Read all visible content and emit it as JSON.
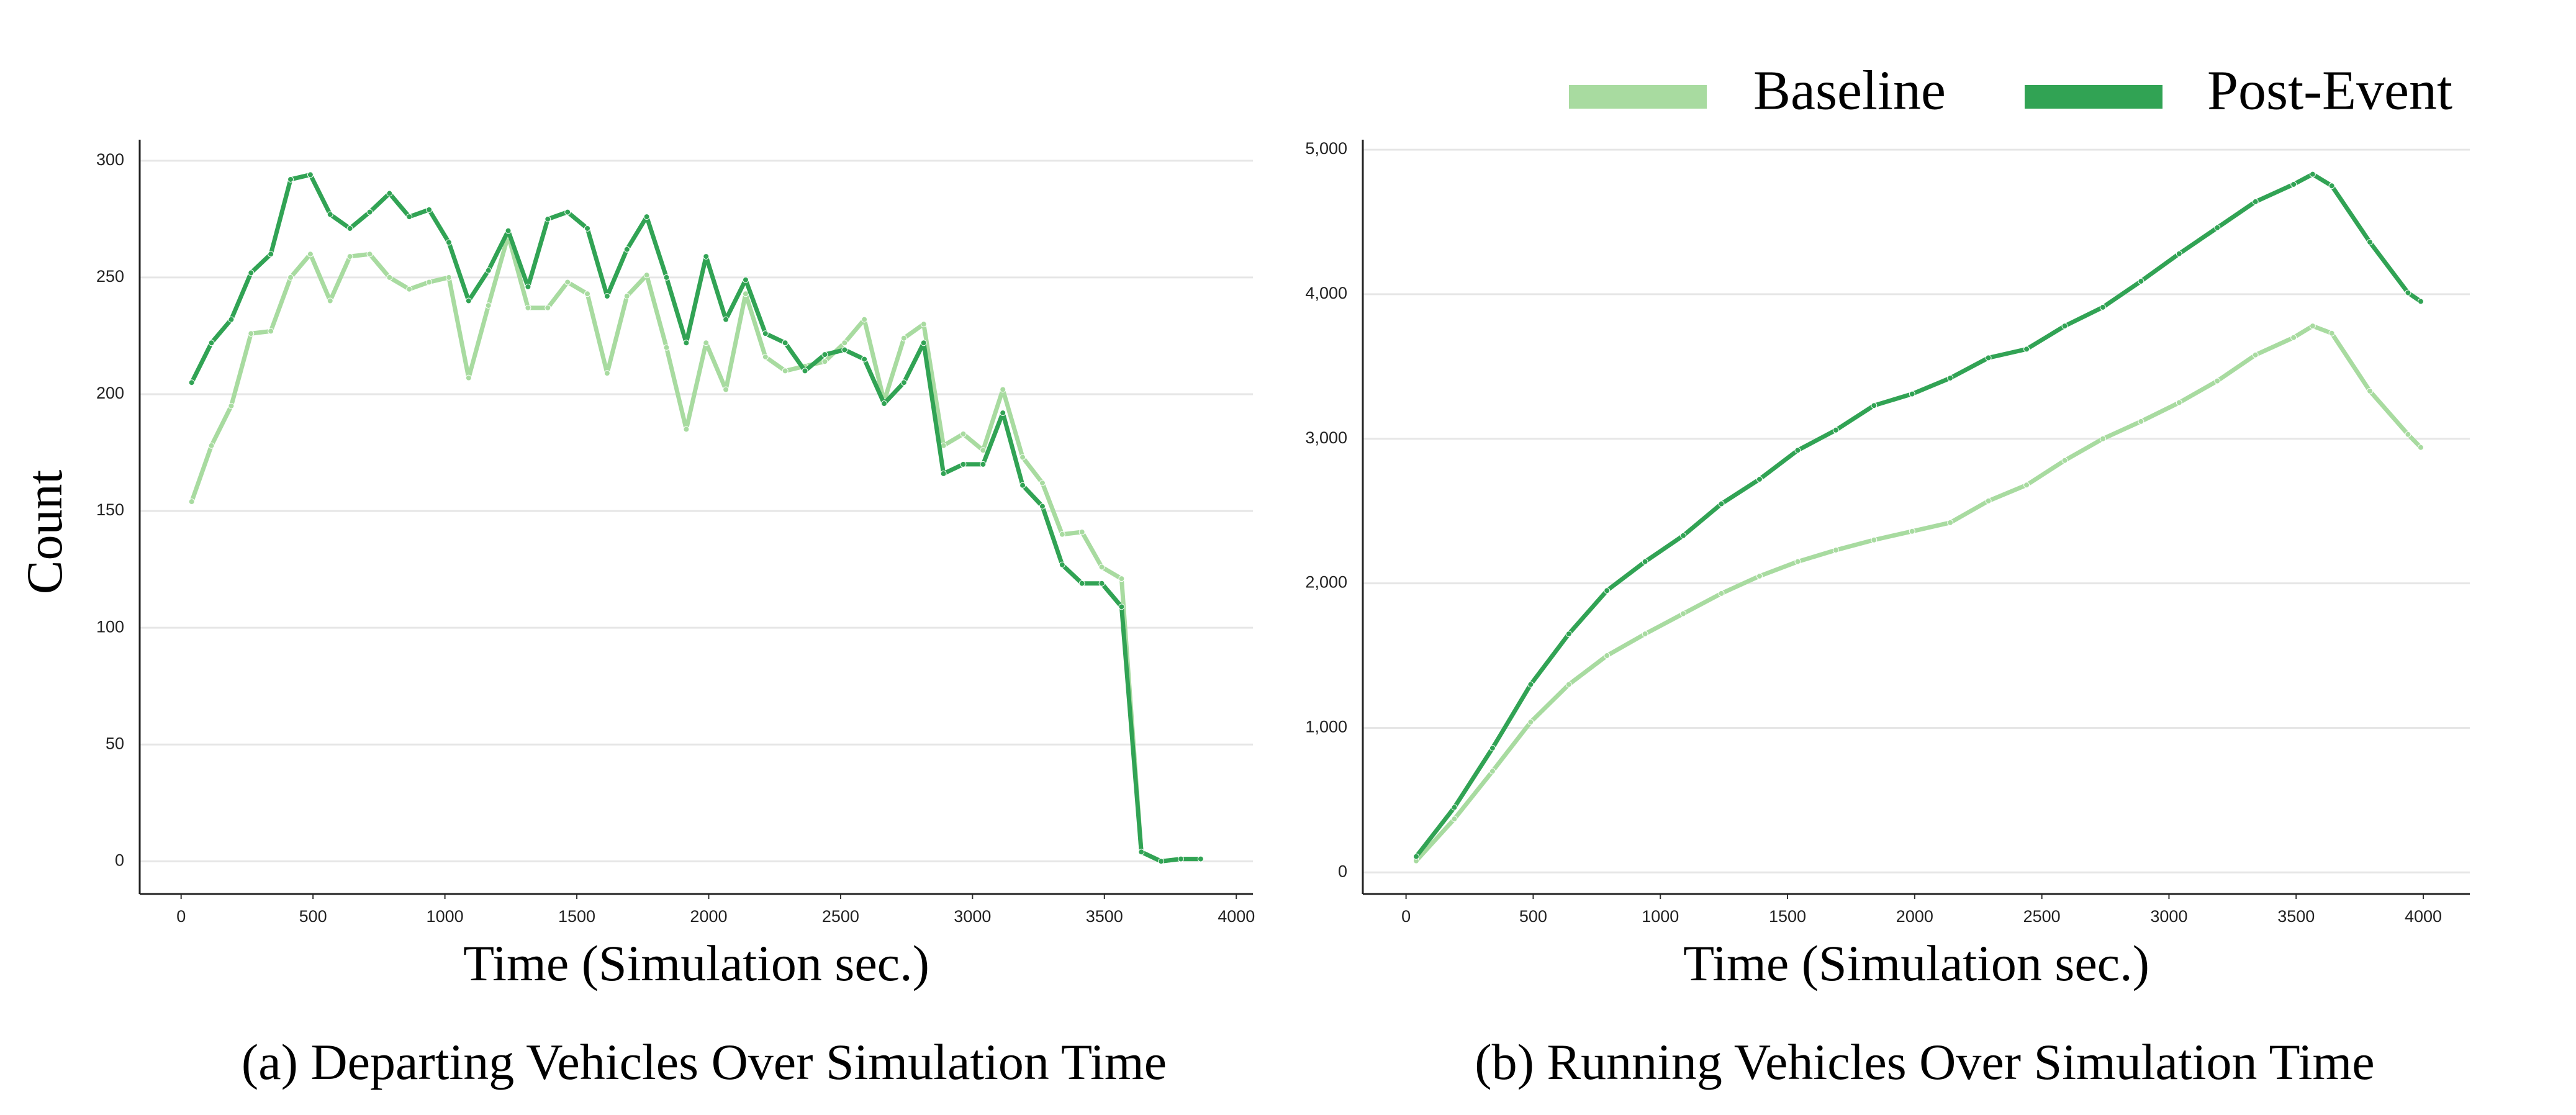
{
  "chart_data": [
    {
      "type": "line",
      "title": "(a) Departing Vehicles Over Simulation Time",
      "xlabel": "Time (Simulation sec.)",
      "ylabel": "Count",
      "x": [
        40,
        115,
        190,
        265,
        340,
        415,
        490,
        565,
        640,
        715,
        790,
        865,
        940,
        1015,
        1090,
        1165,
        1240,
        1315,
        1390,
        1465,
        1540,
        1615,
        1690,
        1765,
        1840,
        1915,
        1990,
        2065,
        2140,
        2215,
        2290,
        2365,
        2440,
        2515,
        2590,
        2665,
        2740,
        2815,
        2890,
        2965,
        3040,
        3115,
        3190,
        3265,
        3340,
        3415,
        3490,
        3565,
        3640,
        3715,
        3790,
        3865
      ],
      "series": [
        {
          "name": "Baseline",
          "color": "#a8dba0",
          "values": [
            154,
            178,
            195,
            226,
            227,
            250,
            260,
            240,
            259,
            260,
            250,
            245,
            248,
            250,
            207,
            238,
            268,
            237,
            237,
            248,
            243,
            209,
            242,
            251,
            220,
            185,
            222,
            202,
            243,
            216,
            210,
            212,
            214,
            222,
            232,
            197,
            224,
            230,
            178,
            183,
            176,
            202,
            173,
            162,
            140,
            141,
            126,
            121,
            4,
            0,
            1,
            1
          ]
        },
        {
          "name": "Post-Event",
          "color": "#31a354",
          "values": [
            205,
            222,
            232,
            252,
            260,
            292,
            294,
            277,
            271,
            278,
            286,
            276,
            279,
            265,
            240,
            253,
            270,
            246,
            275,
            278,
            271,
            242,
            262,
            276,
            250,
            222,
            259,
            232,
            249,
            226,
            222,
            210,
            217,
            219,
            215,
            196,
            205,
            222,
            166,
            170,
            170,
            192,
            161,
            152,
            127,
            119,
            119,
            109,
            4,
            0,
            1,
            1
          ]
        }
      ],
      "xlim": [
        -157,
        4063
      ],
      "ylim": [
        -14,
        309
      ],
      "xticks": [
        0,
        500,
        1000,
        1500,
        2000,
        2500,
        3000,
        3500,
        4000
      ],
      "yticks": [
        0,
        50,
        100,
        150,
        200,
        250,
        300
      ],
      "grid": true
    },
    {
      "type": "line",
      "title": "(b) Running Vehicles Over Simulation Time",
      "xlabel": "Time (Simulation sec.)",
      "x": [
        40,
        190,
        340,
        490,
        640,
        790,
        940,
        1090,
        1240,
        1390,
        1540,
        1690,
        1840,
        1990,
        2140,
        2290,
        2440,
        2590,
        2740,
        2890,
        3040,
        3190,
        3340,
        3490,
        3565,
        3640,
        3790,
        3940,
        3990
      ],
      "series": [
        {
          "name": "Baseline",
          "color": "#a8dba0",
          "values": [
            80,
            370,
            700,
            1040,
            1300,
            1500,
            1650,
            1790,
            1930,
            2050,
            2150,
            2230,
            2300,
            2360,
            2420,
            2570,
            2680,
            2850,
            3000,
            3120,
            3250,
            3400,
            3580,
            3700,
            3780,
            3730,
            3330,
            3030,
            2940
          ]
        },
        {
          "name": "Post-Event",
          "color": "#31a354",
          "values": [
            110,
            450,
            860,
            1300,
            1650,
            1950,
            2150,
            2330,
            2550,
            2720,
            2920,
            3060,
            3230,
            3310,
            3420,
            3560,
            3620,
            3780,
            3910,
            4090,
            4280,
            4460,
            4640,
            4760,
            4830,
            4750,
            4360,
            4010,
            3950
          ]
        }
      ],
      "xlim": [
        -170,
        4183
      ],
      "ylim": [
        -149,
        5069
      ],
      "xticks": [
        0,
        500,
        1000,
        1500,
        2000,
        2500,
        3000,
        3500,
        4000
      ],
      "yticks": [
        0,
        {
          "value": 1000,
          "label": "1,000"
        },
        {
          "value": 2000,
          "label": "2,000"
        },
        {
          "value": 3000,
          "label": "3,000"
        },
        {
          "value": 4000,
          "label": "4,000"
        },
        {
          "value": 5000,
          "label": "5,000"
        }
      ],
      "grid": true,
      "legend": "upper right"
    }
  ]
}
